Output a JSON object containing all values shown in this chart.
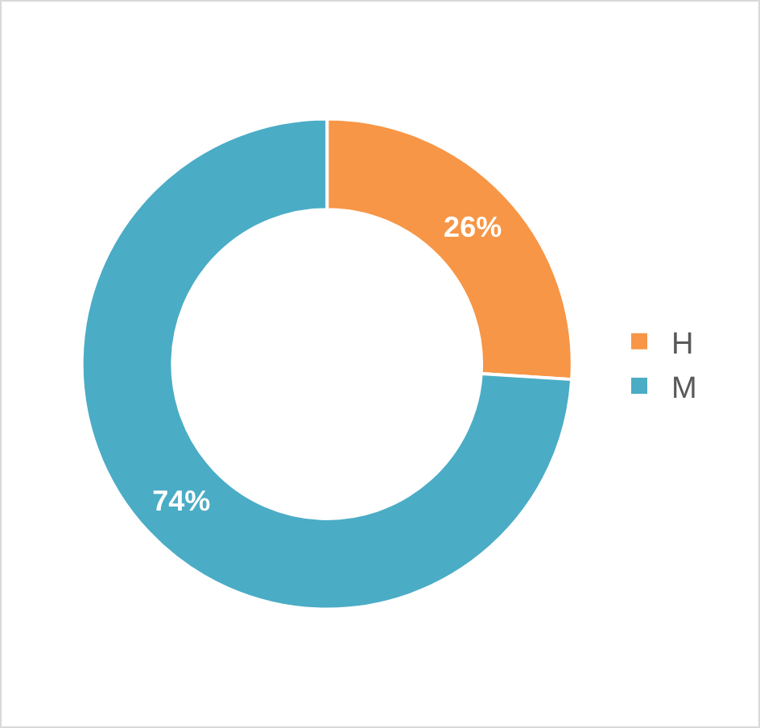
{
  "chart_data": {
    "type": "donut",
    "categories": [
      "H",
      "M"
    ],
    "values": [
      26,
      74
    ],
    "colors": [
      "#f79646",
      "#4bacc6"
    ],
    "value_labels": [
      "26%",
      "74%"
    ],
    "legend": "right"
  }
}
